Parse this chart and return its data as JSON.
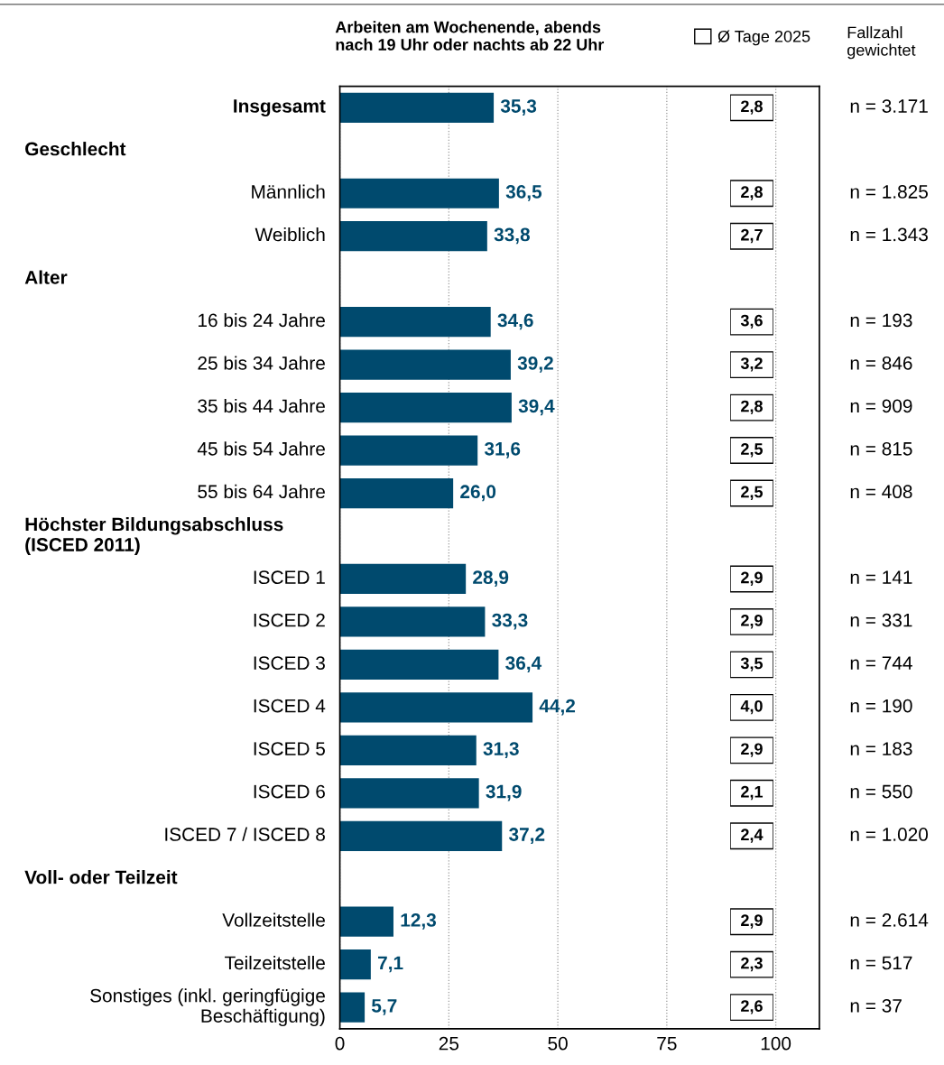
{
  "chart_data": [
    {
      "type": "bar",
      "orientation": "horizontal",
      "title": "Arbeiten am Wochenende, abends\nnach 19 Uhr oder nachts ab 22 Uhr",
      "y2label": "Fallzahl\ngewichtet",
      "annotations": [
        "Geschlecht",
        "Alter",
        "Höchster Bildungsabschluss\n(ISCED 2011)",
        "Voll- oder Teilzeit"
      ],
      "categories": [
        "Insgesamt",
        null,
        "Männlich",
        "Weiblich",
        null,
        "16 bis 24 Jahre",
        "25 bis 34 Jahre",
        "35 bis 44 Jahre",
        "45 bis 54 Jahre",
        "55 bis 64 Jahre",
        null,
        "ISCED 1",
        "ISCED 2",
        "ISCED 3",
        "ISCED 4",
        "ISCED 5",
        "ISCED 6",
        "ISCED 7 / ISCED 8",
        null,
        "Vollzeitstelle",
        "Teilzeitstelle",
        "Sonstiges (inkl. geringfügige\nBeschäftigung)"
      ],
      "y2_categories": [
        "n = 3.171",
        null,
        "n = 1.825",
        "n = 1.343",
        null,
        "n = 193",
        "n = 846",
        "n = 909",
        "n = 815",
        "n = 408",
        null,
        "n = 141",
        "n = 331",
        "n = 744",
        "n = 190",
        "n = 183",
        "n = 550",
        "n = 1.020",
        null,
        "n = 2.614",
        "n = 517",
        "n = 37"
      ],
      "series": [
        {
          "color": "#004a6e",
          "values": [
            35.3,
            null,
            36.5,
            33.8,
            null,
            34.6,
            39.2,
            39.4,
            31.6,
            26.0,
            null,
            28.9,
            33.3,
            36.4,
            44.2,
            31.3,
            31.9,
            37.2,
            null,
            12.3,
            7.1,
            5.7
          ],
          "value_labels": [
            "35,3",
            null,
            "36,5",
            "33,8",
            null,
            "34,6",
            "39,2",
            "39,4",
            "31,6",
            "26,0",
            null,
            "28,9",
            "33,3",
            "36,4",
            "44,2",
            "31,3",
            "31,9",
            "37,2",
            null,
            "12,3",
            "7,1",
            "5,7"
          ]
        }
      ],
      "xlim": [
        0,
        110
      ],
      "xticks": [
        0,
        25,
        50,
        75,
        100
      ],
      "grid": "x"
    },
    {
      "type": "other",
      "categories": [
        null,
        null,
        null,
        null,
        null,
        null,
        null,
        null,
        null,
        null,
        null,
        null,
        null,
        null,
        null,
        null,
        null,
        null,
        null,
        null,
        null,
        null
      ],
      "series": [
        {
          "name": "Ø Tage 2025",
          "color": "#000000",
          "values": [
            2.8,
            null,
            2.8,
            2.7,
            null,
            3.6,
            3.2,
            2.8,
            2.5,
            2.5,
            null,
            2.9,
            2.9,
            3.5,
            4.0,
            2.9,
            2.1,
            2.4,
            null,
            2.9,
            2.3,
            2.6
          ],
          "value_labels": [
            "2,8",
            null,
            "2,8",
            "2,7",
            null,
            "3,6",
            "3,2",
            "2,8",
            "2,5",
            "2,5",
            null,
            "2,9",
            "2,9",
            "3,5",
            "4,0",
            "2,9",
            "2,1",
            "2,4",
            null,
            "2,9",
            "2,3",
            "2,6"
          ]
        }
      ],
      "legend": "top right"
    }
  ]
}
